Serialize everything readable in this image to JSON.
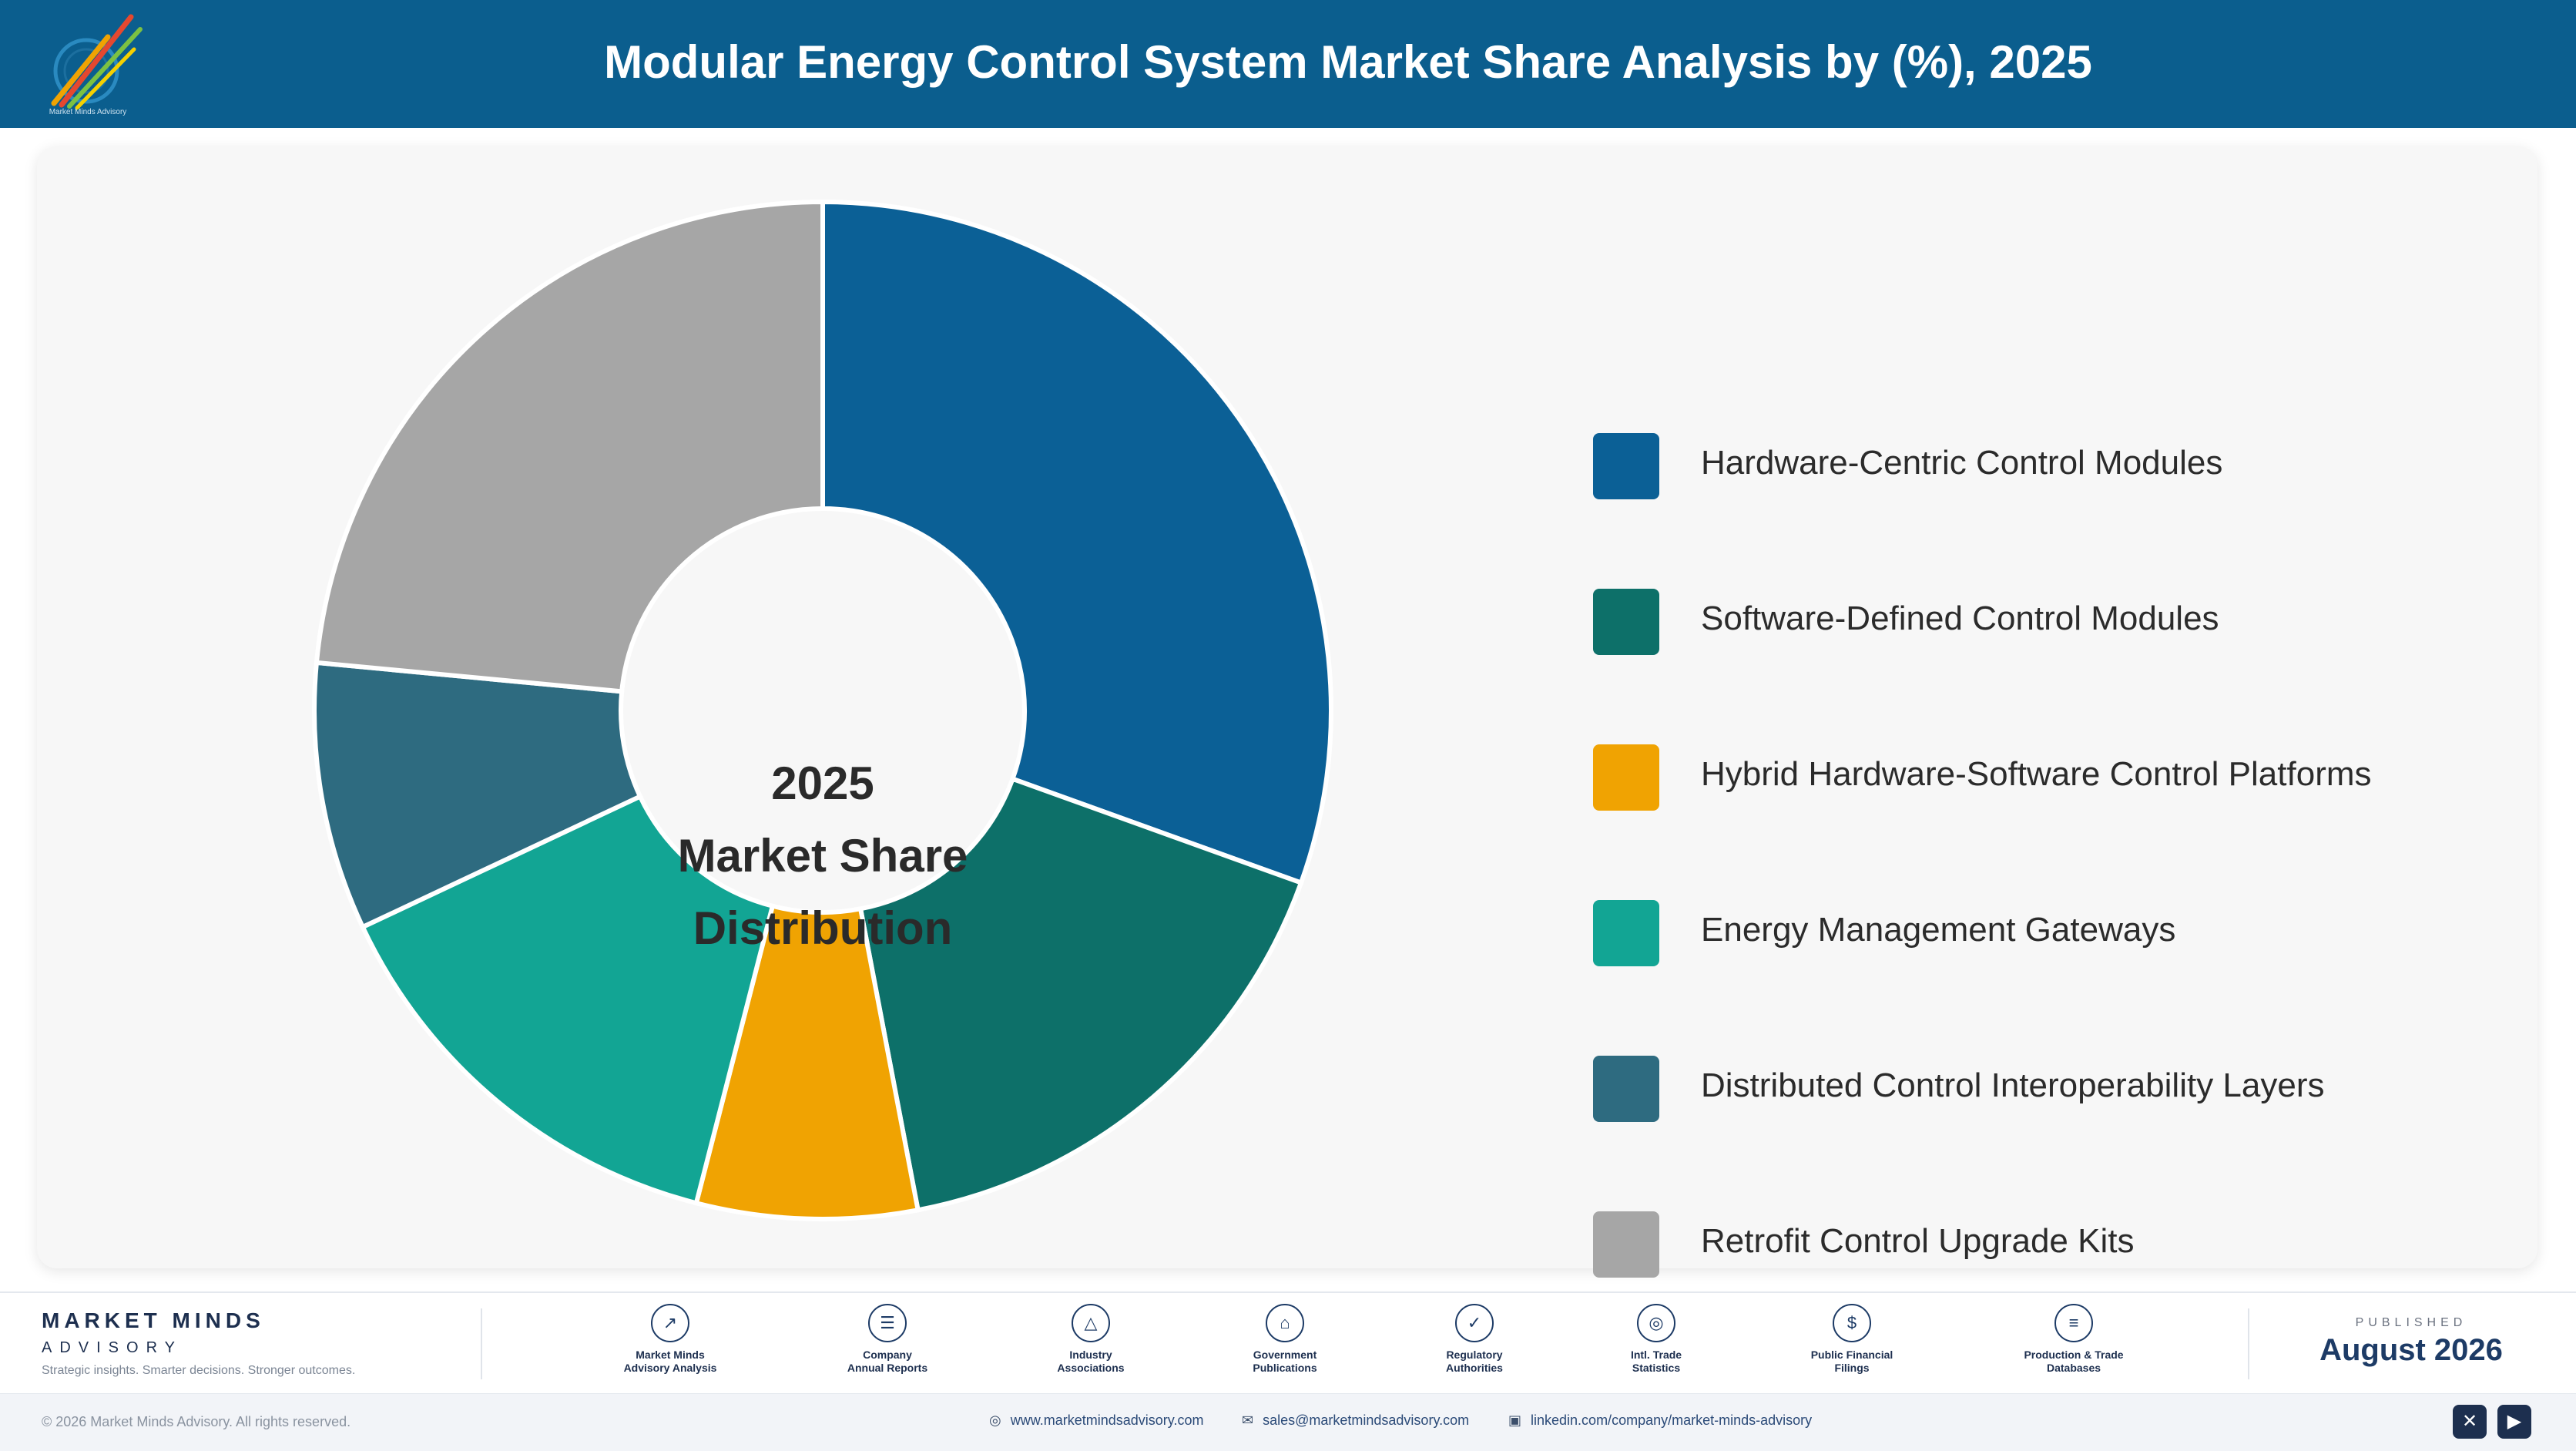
{
  "header": {
    "title": "Modular Energy Control System Market Share Analysis by (%), 2025",
    "logo_icon": "market-minds-logo",
    "logo_caption": "Market Minds Advisory"
  },
  "chart_data": {
    "type": "pie",
    "donut": true,
    "title": "Modular Energy Control System Market Share Analysis by (%), 2025",
    "center_label": [
      "2025",
      "Market Share",
      "Distribution"
    ],
    "categories": [
      "Hardware-Centric Control Modules",
      "Software-Defined Control Modules",
      "Hybrid Hardware-Software Control Platforms",
      "Energy Management Gateways",
      "Distributed Control Interoperability Layers",
      "Retrofit Control Upgrade Kits"
    ],
    "values": [
      30.5,
      16.5,
      7,
      14,
      8.5,
      23.5
    ],
    "colors": [
      "#0b6096",
      "#0d7069",
      "#f0a302",
      "#12a594",
      "#2e6b80",
      "#a6a6a6"
    ],
    "legend_position": "right",
    "data_labels": false
  },
  "footer": {
    "brand_name": "MARKET MINDS",
    "brand_sub": "ADVISORY",
    "tagline": "Strategic insights. Smarter decisions. Stronger outcomes.",
    "sources": [
      {
        "icon": "trend-chart-icon",
        "glyph": "↗",
        "label_1": "Market Minds",
        "label_2": "Advisory Analysis"
      },
      {
        "icon": "document-icon",
        "glyph": "☰",
        "label_1": "Company",
        "label_2": "Annual Reports"
      },
      {
        "icon": "network-icon",
        "glyph": "△",
        "label_1": "Industry",
        "label_2": "Associations"
      },
      {
        "icon": "government-building-icon",
        "glyph": "⌂",
        "label_1": "Government",
        "label_2": "Publications"
      },
      {
        "icon": "shield-check-icon",
        "glyph": "✓",
        "label_1": "Regulatory",
        "label_2": "Authorities"
      },
      {
        "icon": "globe-icon",
        "glyph": "◎",
        "label_1": "Intl. Trade",
        "label_2": "Statistics"
      },
      {
        "icon": "coin-icon",
        "glyph": "$",
        "label_1": "Public Financial",
        "label_2": "Filings"
      },
      {
        "icon": "database-icon",
        "glyph": "≡",
        "label_1": "Production & Trade",
        "label_2": "Databases"
      }
    ],
    "published_label": "PUBLISHED",
    "published_date": "August 2026"
  },
  "bottom_bar": {
    "copyright": "© 2026 Market Minds Advisory. All rights reserved.",
    "website": "www.marketmindsadvisory.com",
    "email": "sales@marketmindsadvisory.com",
    "linkedin": "linkedin.com/company/market-minds-advisory",
    "icons": {
      "website": "globe-icon",
      "email": "mail-icon",
      "linkedin": "linkedin-icon",
      "x": "x-icon",
      "youtube": "youtube-icon"
    }
  }
}
